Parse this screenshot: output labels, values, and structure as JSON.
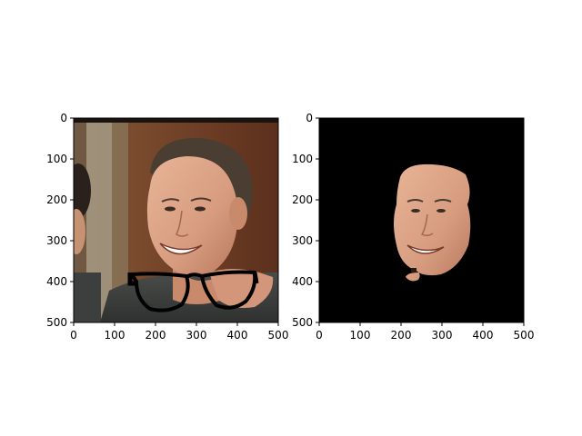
{
  "figure": {
    "background": "#ffffff",
    "panels": [
      {
        "id": "left",
        "image_content": "photo of smiling man with black eyeglasses overlay near chin",
        "x_ticks": [
          "0",
          "100",
          "200",
          "300",
          "400",
          "500"
        ],
        "y_ticks": [
          "0",
          "100",
          "200",
          "300",
          "400",
          "500"
        ]
      },
      {
        "id": "right",
        "image_content": "segmented face on black background",
        "x_ticks": [
          "0",
          "100",
          "200",
          "300",
          "400",
          "500"
        ],
        "y_ticks": [
          "0",
          "100",
          "200",
          "300",
          "400",
          "500"
        ]
      }
    ]
  }
}
